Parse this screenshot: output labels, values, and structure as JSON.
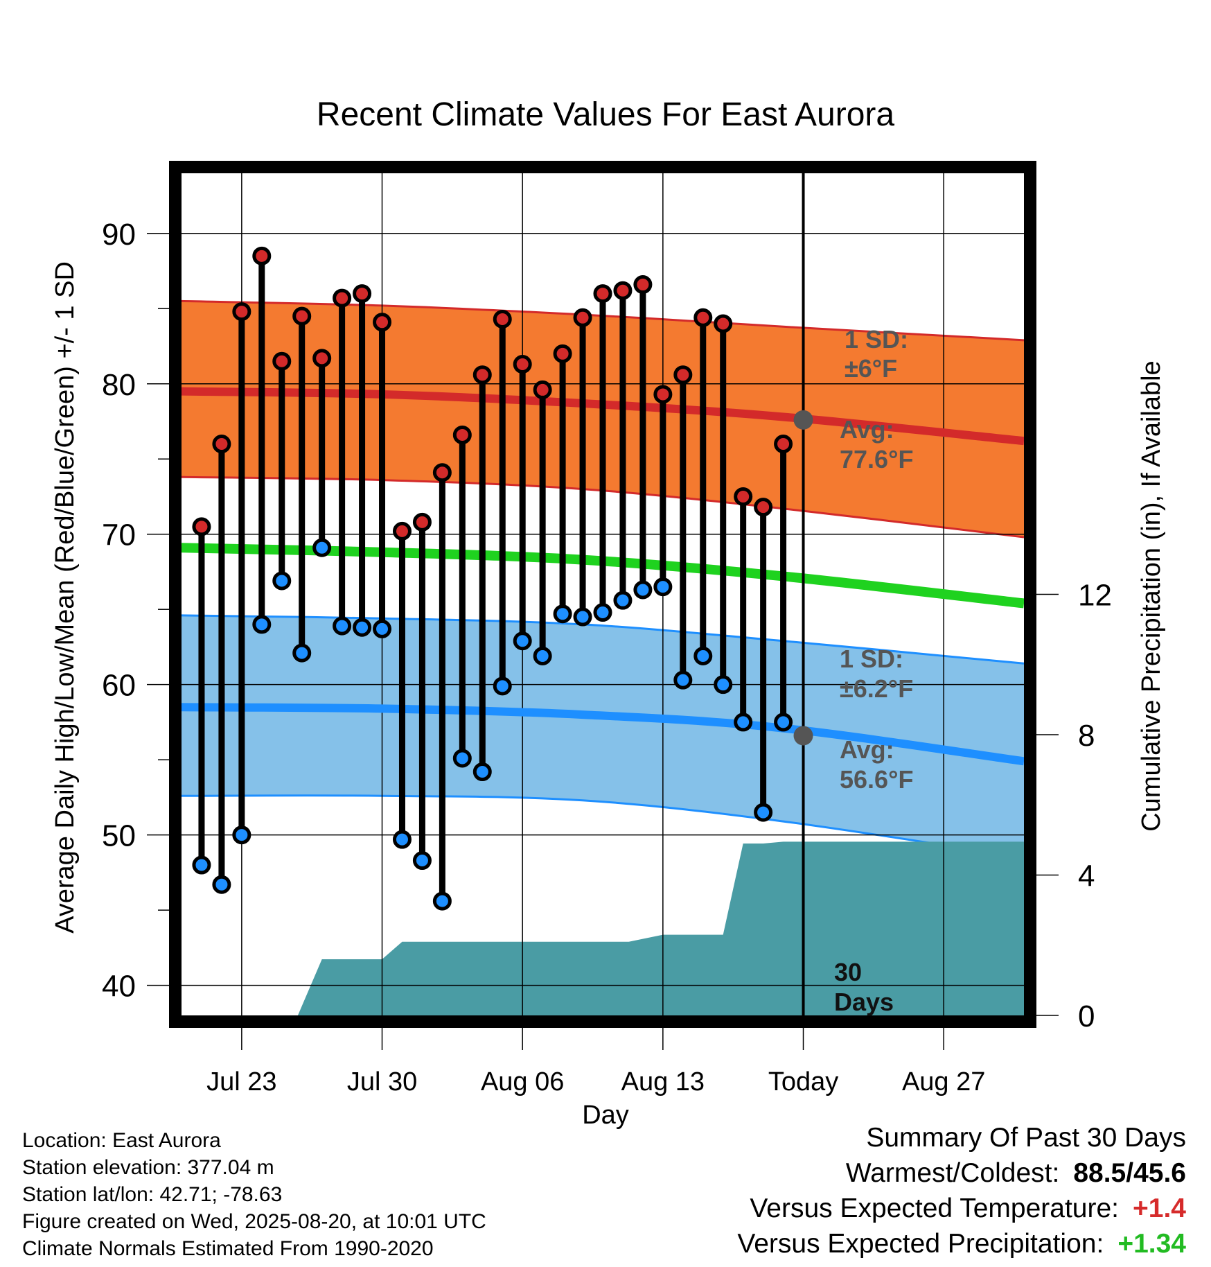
{
  "chart_data": {
    "type": "line",
    "title": "Recent Climate Values For East Aurora",
    "xlabel": "Day",
    "ylabel": "Average Daily High/Low/Mean (Red/Blue/Green) +/- 1 SD",
    "ylabel_right": "Cumulative Precipitation (in), If Available",
    "ylim": [
      38,
      94
    ],
    "ylim_right": [
      0,
      24
    ],
    "yticks": [
      40,
      50,
      60,
      70,
      80,
      90
    ],
    "yticks_right": [
      0,
      4,
      8,
      12
    ],
    "xlim_days": [
      0,
      42
    ],
    "xticks": [
      {
        "day": 3,
        "label": "Jul 23"
      },
      {
        "day": 10,
        "label": "Jul 30"
      },
      {
        "day": 17,
        "label": "Aug 06"
      },
      {
        "day": 24,
        "label": "Aug 13"
      },
      {
        "day": 31,
        "label": "Today"
      },
      {
        "day": 38,
        "label": "Aug 27"
      }
    ],
    "days": [
      1,
      2,
      3,
      4,
      5,
      6,
      7,
      8,
      9,
      10,
      11,
      12,
      13,
      14,
      15,
      16,
      17,
      18,
      19,
      20,
      21,
      22,
      23,
      24,
      25,
      26,
      27,
      28,
      29,
      30
    ],
    "highs": [
      70.5,
      76.0,
      84.8,
      88.5,
      81.5,
      84.5,
      81.7,
      85.7,
      86.0,
      84.1,
      70.2,
      70.8,
      74.1,
      76.6,
      80.6,
      84.3,
      81.3,
      79.6,
      82.0,
      84.4,
      86.0,
      86.2,
      86.6,
      79.3,
      80.6,
      84.4,
      84.0,
      72.5,
      71.8,
      76.0
    ],
    "lows": [
      48.0,
      46.7,
      50.0,
      64.0,
      66.9,
      62.1,
      69.1,
      63.9,
      63.8,
      63.7,
      49.7,
      48.3,
      45.6,
      55.1,
      54.2,
      59.9,
      62.9,
      61.9,
      64.7,
      64.5,
      64.8,
      65.6,
      66.3,
      66.5,
      60.3,
      61.9,
      60.0,
      57.5,
      51.5,
      57.5
    ],
    "normals": {
      "day": [
        0,
        10,
        20,
        30,
        42
      ],
      "high_avg": [
        79.5,
        79.3,
        78.7,
        77.8,
        76.2
      ],
      "high_plus_sd": [
        85.5,
        85.2,
        84.6,
        83.8,
        82.9
      ],
      "high_minus_sd": [
        73.8,
        73.6,
        73.0,
        71.7,
        69.8
      ],
      "mean_avg": [
        69.1,
        68.8,
        68.3,
        67.2,
        65.4
      ],
      "low_avg": [
        58.5,
        58.4,
        58.0,
        57.1,
        54.9
      ],
      "low_plus_sd": [
        64.6,
        64.4,
        64.0,
        62.9,
        61.4
      ],
      "low_minus_sd": [
        52.6,
        52.6,
        52.3,
        50.9,
        48.5
      ]
    },
    "precip": {
      "day": [
        5.8,
        7.0,
        10.0,
        11.0,
        20.0,
        22.3,
        24.0,
        25.0,
        27.0,
        28.0,
        29.0,
        30.0,
        42.0
      ],
      "cumulative": [
        0,
        1.6,
        1.6,
        2.1,
        2.1,
        2.1,
        2.3,
        2.3,
        2.3,
        4.9,
        4.9,
        4.95,
        4.95
      ]
    },
    "today_day": 31,
    "period_label": "30 Days",
    "annotations": {
      "high_sd_line1": "1 SD:",
      "high_sd_line2": "±6°F",
      "high_avg_line1": "Avg:",
      "high_avg_line2": "77.6°F",
      "low_sd_line1": "1 SD:",
      "low_sd_line2": "±6.2°F",
      "low_avg_line1": "Avg:",
      "low_avg_line2": "56.6°F"
    },
    "today_high_avg": 77.6,
    "today_low_avg": 56.6,
    "colors": {
      "high_band": "#f47a30",
      "high_line": "#d32a2a",
      "mean_line": "#1fd21f",
      "low_band": "#85c1e9",
      "low_line": "#1e8fff",
      "precip_fill": "#4a9ca4",
      "high_dot": "#d32a2a",
      "low_dot": "#1e8fff"
    }
  },
  "meta": {
    "location": "Location: East Aurora",
    "elevation": "Station elevation: 377.04 m",
    "latlon": "Station lat/lon: 42.71; -78.63",
    "created": "Figure created on Wed, 2025-08-20, at 10:01 UTC",
    "normals": "Climate Normals Estimated From 1990-2020"
  },
  "summary": {
    "heading": "Summary Of Past 30 Days",
    "warm_cold_label": "Warmest/Coldest:",
    "warm_cold_value": "88.5/45.6",
    "temp_label": "Versus Expected Temperature:",
    "temp_value": "+1.4",
    "precip_label": "Versus Expected Precipitation:",
    "precip_value": "+1.34"
  }
}
